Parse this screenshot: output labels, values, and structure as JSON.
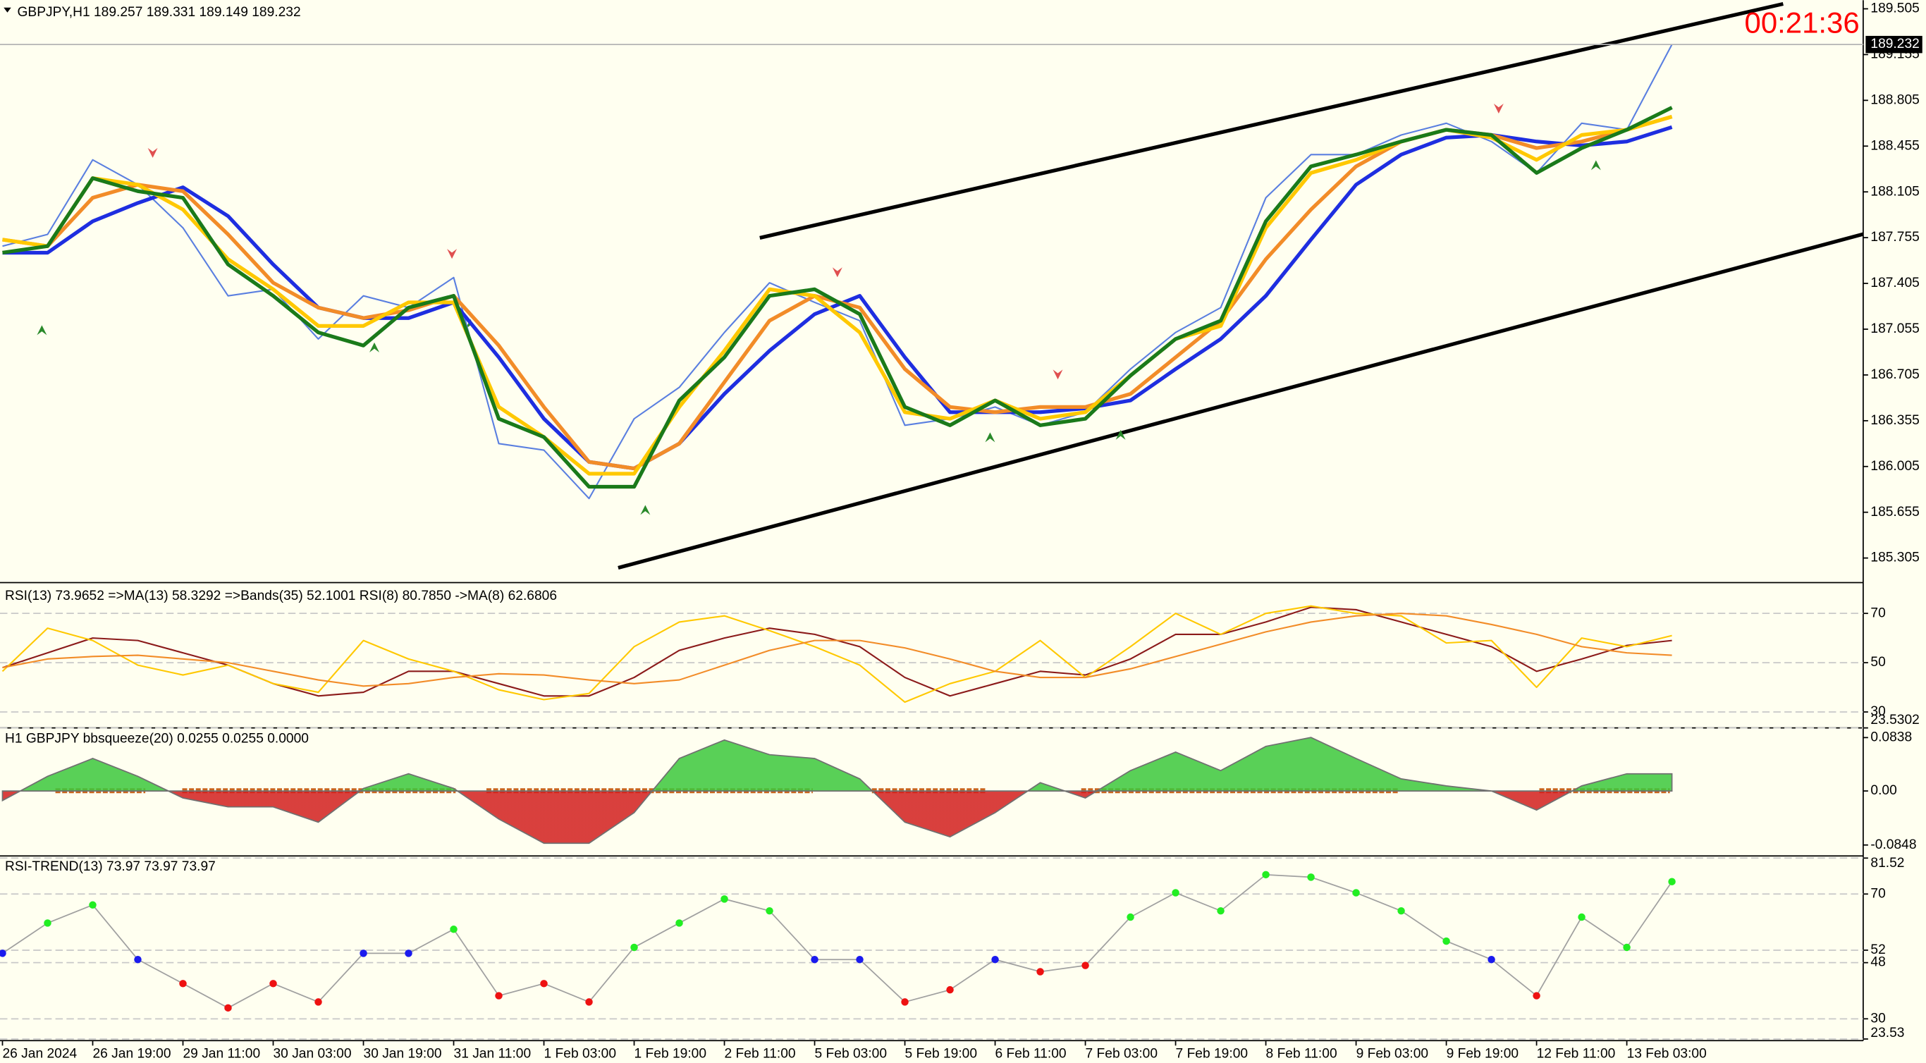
{
  "chart_data": [
    {
      "type": "line",
      "title": "GBPJPY,H1  189.257 189.331 189.149 189.232",
      "clock": "00:21:36",
      "last_price": 189.232,
      "x": [
        0,
        8,
        16,
        24,
        32,
        40,
        48,
        56,
        64,
        72,
        80,
        88,
        96,
        104,
        112,
        120,
        128,
        136,
        144,
        152,
        160,
        168,
        176,
        184,
        192,
        200,
        208,
        216,
        224,
        232,
        240,
        248,
        256,
        264,
        272,
        280,
        288,
        296
      ],
      "xlim": [
        0,
        330
      ],
      "xticks": [
        {
          "value": 0,
          "label": "26 Jan 2024"
        },
        {
          "value": 16,
          "label": "26 Jan 19:00"
        },
        {
          "value": 32,
          "label": "29 Jan 11:00"
        },
        {
          "value": 48,
          "label": "30 Jan 03:00"
        },
        {
          "value": 64,
          "label": "30 Jan 19:00"
        },
        {
          "value": 80,
          "label": "31 Jan 11:00"
        },
        {
          "value": 96,
          "label": "1 Feb 03:00"
        },
        {
          "value": 112,
          "label": "1 Feb 19:00"
        },
        {
          "value": 128,
          "label": "2 Feb 11:00"
        },
        {
          "value": 144,
          "label": "5 Feb 03:00"
        },
        {
          "value": 160,
          "label": "5 Feb 19:00"
        },
        {
          "value": 176,
          "label": "6 Feb 11:00"
        },
        {
          "value": 192,
          "label": "7 Feb 03:00"
        },
        {
          "value": 208,
          "label": "7 Feb 19:00"
        },
        {
          "value": 224,
          "label": "8 Feb 11:00"
        },
        {
          "value": 240,
          "label": "9 Feb 03:00"
        },
        {
          "value": 256,
          "label": "9 Feb 19:00"
        },
        {
          "value": 272,
          "label": "12 Feb 11:00"
        },
        {
          "value": 288,
          "label": "13 Feb 03:00"
        }
      ],
      "ylim": [
        185.117,
        189.571
      ],
      "yticks": [
        189.505,
        189.155,
        188.805,
        188.455,
        188.105,
        187.755,
        187.405,
        187.055,
        186.705,
        186.355,
        186.005,
        185.655,
        185.305
      ],
      "series": [
        {
          "color": "#5a7fe0",
          "values": [
            187.69,
            187.78,
            188.35,
            188.16,
            187.83,
            187.31,
            187.36,
            186.98,
            187.31,
            187.22,
            187.45,
            186.18,
            186.13,
            185.76,
            186.37,
            186.61,
            187.03,
            187.41,
            187.26,
            187.12,
            186.32,
            186.37,
            186.46,
            186.32,
            186.42,
            186.75,
            187.03,
            187.22,
            188.06,
            188.39,
            188.39,
            188.54,
            188.63,
            188.49,
            188.25,
            188.63,
            188.58,
            189.232
          ]
        },
        {
          "color": "#1e2ee0",
          "values": [
            187.64,
            187.64,
            187.88,
            188.02,
            188.14,
            187.92,
            187.55,
            187.22,
            187.14,
            187.14,
            187.26,
            186.84,
            186.37,
            186.04,
            185.99,
            186.18,
            186.56,
            186.89,
            187.17,
            187.31,
            186.84,
            186.42,
            186.42,
            186.42,
            186.45,
            186.51,
            186.75,
            186.98,
            187.31,
            187.74,
            188.16,
            188.39,
            188.52,
            188.54,
            188.49,
            188.46,
            188.49,
            188.6
          ]
        },
        {
          "color": "#f28c28",
          "values": [
            187.74,
            187.69,
            188.06,
            188.16,
            188.11,
            187.78,
            187.41,
            187.22,
            187.14,
            187.2,
            187.31,
            186.93,
            186.46,
            186.04,
            185.99,
            186.18,
            186.65,
            187.12,
            187.31,
            187.22,
            186.75,
            186.46,
            186.42,
            186.46,
            186.46,
            186.56,
            186.84,
            187.12,
            187.59,
            187.97,
            188.3,
            188.49,
            188.58,
            188.54,
            188.44,
            188.49,
            188.58,
            188.68
          ]
        },
        {
          "color": "#ffc800",
          "values": [
            187.74,
            187.69,
            188.21,
            188.16,
            187.97,
            187.59,
            187.36,
            187.08,
            187.08,
            187.26,
            187.26,
            186.46,
            186.23,
            185.95,
            185.95,
            186.46,
            186.89,
            187.36,
            187.31,
            187.03,
            186.42,
            186.37,
            186.51,
            186.37,
            186.42,
            186.7,
            186.98,
            187.08,
            187.83,
            188.25,
            188.35,
            188.49,
            188.58,
            188.52,
            188.35,
            188.54,
            188.58,
            188.68
          ]
        },
        {
          "color": "#1a7a1a",
          "values": [
            187.64,
            187.69,
            188.21,
            188.11,
            188.06,
            187.55,
            187.31,
            187.03,
            186.93,
            187.22,
            187.31,
            186.37,
            186.23,
            185.85,
            185.85,
            186.51,
            186.84,
            187.31,
            187.36,
            187.17,
            186.46,
            186.32,
            186.51,
            186.32,
            186.37,
            186.7,
            186.98,
            187.12,
            187.88,
            188.3,
            188.39,
            188.49,
            188.58,
            188.54,
            188.25,
            188.44,
            188.58,
            188.75
          ]
        }
      ]
    },
    {
      "type": "line",
      "title": "RSI(13) 73.9652  =>MA(13) 58.3292  =>Bands(35) 52.1001  RSI(8) 80.7850  ->MA(8) 62.6806",
      "ylim": [
        23.5302,
        82.5
      ],
      "yticks": [
        70,
        50,
        30,
        23.5302
      ],
      "grid": true,
      "series": [
        {
          "color": "#8b1a1a",
          "values": [
            48,
            54,
            60,
            59,
            54,
            49,
            41.5,
            36.5,
            38,
            46.5,
            46.5,
            41.5,
            36.5,
            36.5,
            44,
            55,
            60,
            64,
            61.5,
            56.5,
            44,
            36.5,
            41.5,
            46.5,
            45,
            51.5,
            61.5,
            61.5,
            66.5,
            72.5,
            71.5,
            66.5,
            61.5,
            56.5,
            46.5,
            51.5,
            57,
            59
          ]
        },
        {
          "color": "#ffc800",
          "values": [
            46.5,
            64,
            59,
            49,
            45,
            49,
            41.5,
            38,
            59,
            51.5,
            46.5,
            39,
            35,
            37.5,
            56.5,
            66.5,
            69,
            63,
            56.5,
            49,
            34,
            41.5,
            46.5,
            59,
            44,
            56.5,
            70,
            61.5,
            70,
            73,
            70,
            69,
            58,
            59,
            40,
            60,
            56.5,
            61
          ]
        },
        {
          "color": "#f28c28",
          "values": [
            48,
            51.5,
            52.5,
            53,
            51.5,
            50,
            46.5,
            43,
            40.5,
            41.5,
            44,
            45.5,
            45,
            43,
            41.5,
            43,
            49,
            55,
            59,
            59,
            56,
            51.5,
            46.5,
            44,
            44,
            47.5,
            52.5,
            57.5,
            62.5,
            66.5,
            69,
            70,
            69,
            65.5,
            61.5,
            56.5,
            54,
            53
          ]
        }
      ]
    },
    {
      "type": "area",
      "title": "H1 GBPJPY bbsqueeze(20) 0.0255 0.0255 0.0000",
      "ylim": [
        -0.102,
        0.099
      ],
      "yticks": [
        0.0838,
        {
          "value": 0,
          "label": "0.00"
        },
        -0.0848
      ],
      "positive_color": "#3cc83c",
      "negative_color": "#d21e1e",
      "values": [
        -0.015,
        0.023,
        0.051,
        0.023,
        -0.011,
        -0.025,
        -0.025,
        -0.049,
        0.004,
        0.027,
        0.004,
        -0.044,
        -0.082,
        -0.082,
        -0.034,
        0.051,
        0.08,
        0.057,
        0.051,
        0.019,
        -0.049,
        -0.072,
        -0.034,
        0.013,
        -0.011,
        0.032,
        0.061,
        0.032,
        0.07,
        0.084,
        0.051,
        0.019,
        0.008,
        0,
        -0.03,
        0.008,
        0.027,
        0.027
      ]
    },
    {
      "type": "scatter",
      "title": "RSI-TREND(13) 73.97 73.97 73.97",
      "ylim": [
        23,
        82.2
      ],
      "yticks": [
        81.52,
        70,
        52,
        48,
        30,
        23.53
      ],
      "grid": true,
      "up_color": "#22ee22",
      "flat_color": "#1a1aee",
      "down_color": "#ee1111",
      "values": [
        51,
        60.7,
        66.5,
        49,
        41.3,
        33.5,
        41.3,
        35.4,
        51,
        51,
        58.7,
        37.4,
        41.3,
        35.4,
        52.9,
        60.7,
        68.4,
        64.6,
        49,
        49,
        35.4,
        39.3,
        49,
        45.1,
        47.1,
        62.6,
        70.4,
        64.6,
        76.2,
        75.4,
        70.4,
        64.6,
        54.9,
        49,
        37.4,
        62.6,
        52.9,
        73.97
      ]
    }
  ]
}
